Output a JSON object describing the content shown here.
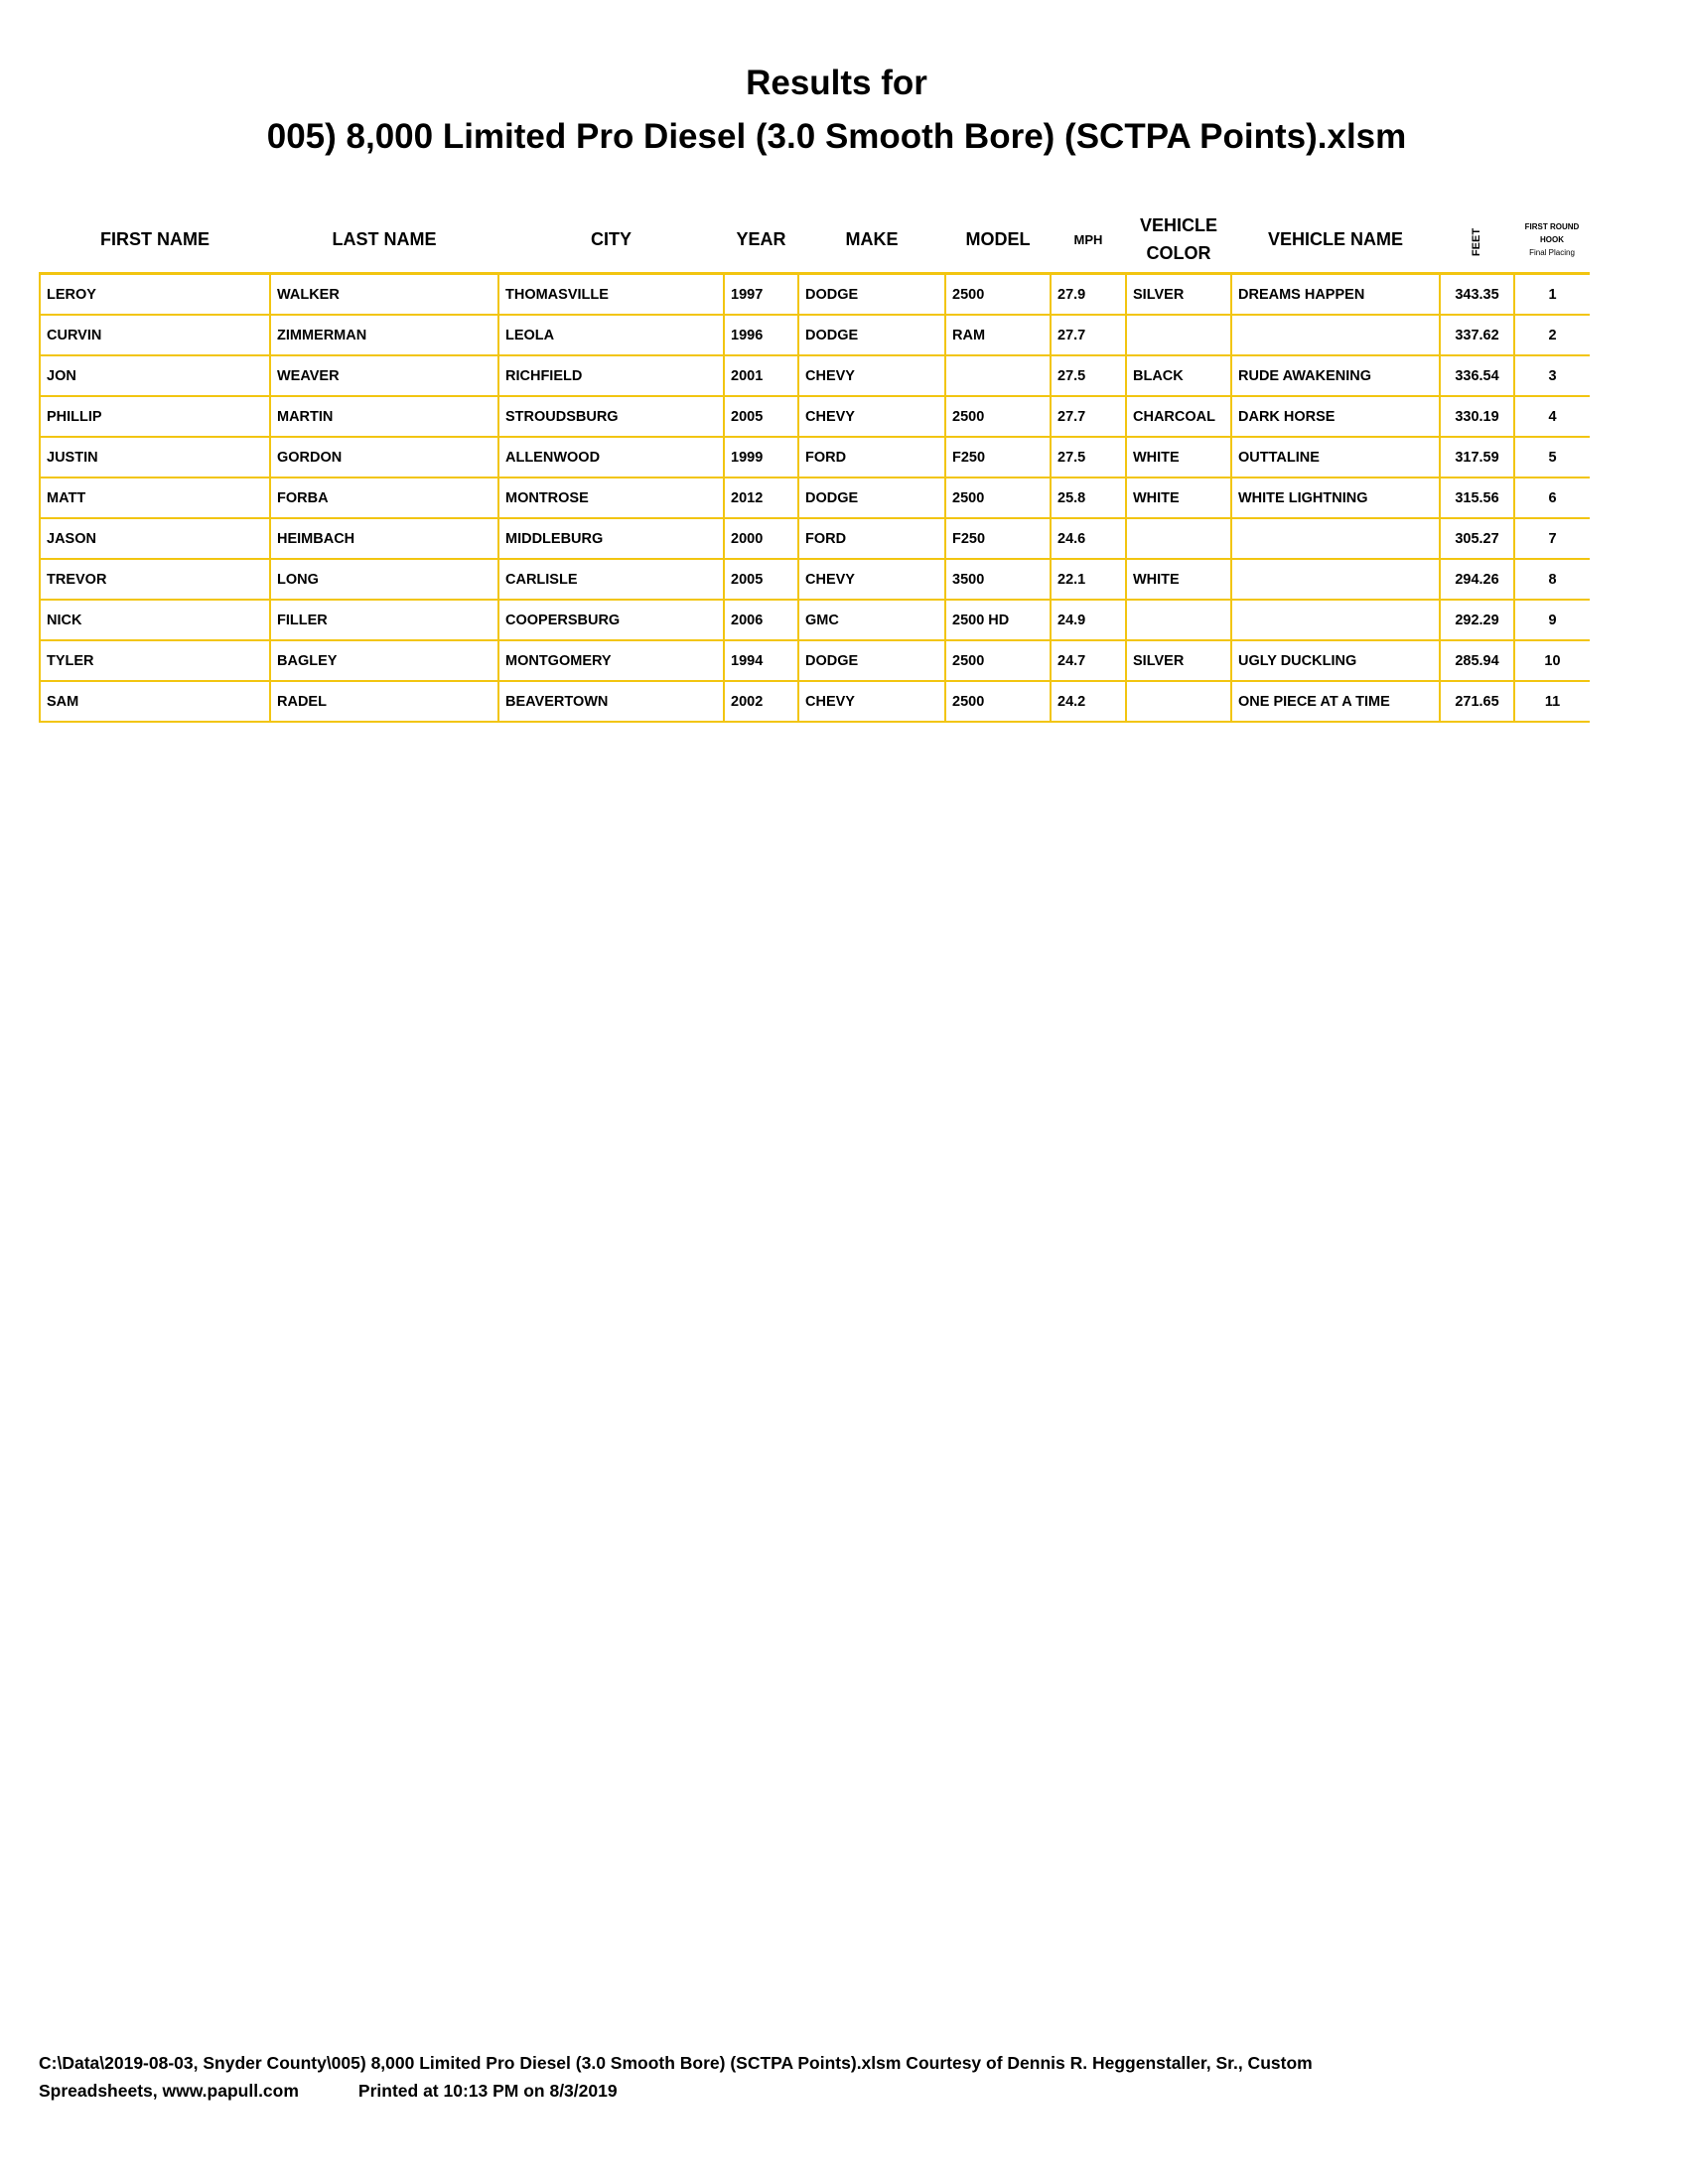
{
  "title_line1": "Results for",
  "title_line2": "005) 8,000 Limited Pro Diesel (3.0 Smooth Bore) (SCTPA Points).xlsm",
  "columns": {
    "first": "FIRST NAME",
    "last": "LAST NAME",
    "city": "CITY",
    "year": "YEAR",
    "make": "MAKE",
    "model": "MODEL",
    "mph": "MPH",
    "color_line1": "VEHICLE",
    "color_line2": "COLOR",
    "vname": "VEHICLE NAME",
    "feet": "FEET",
    "place_line1": "FIRST ROUND",
    "place_line2": "HOOK",
    "place_line3": "Final Placing"
  },
  "rows": [
    [
      "LEROY",
      "WALKER",
      "THOMASVILLE",
      "1997",
      "DODGE",
      "2500",
      "27.9",
      "SILVER",
      "DREAMS HAPPEN",
      "343.35",
      "1"
    ],
    [
      "CURVIN",
      "ZIMMERMAN",
      "LEOLA",
      "1996",
      "DODGE",
      "RAM",
      "27.7",
      "",
      "",
      "337.62",
      "2"
    ],
    [
      "JON",
      "WEAVER",
      "RICHFIELD",
      "2001",
      "CHEVY",
      "",
      "27.5",
      "BLACK",
      "RUDE AWAKENING",
      "336.54",
      "3"
    ],
    [
      "PHILLIP",
      "MARTIN",
      "STROUDSBURG",
      "2005",
      "CHEVY",
      "2500",
      "27.7",
      "CHARCOAL",
      "DARK HORSE",
      "330.19",
      "4"
    ],
    [
      "JUSTIN",
      "GORDON",
      "ALLENWOOD",
      "1999",
      "FORD",
      "F250",
      "27.5",
      "WHITE",
      "OUTTALINE",
      "317.59",
      "5"
    ],
    [
      "MATT",
      "FORBA",
      "MONTROSE",
      "2012",
      "DODGE",
      "2500",
      "25.8",
      "WHITE",
      "WHITE LIGHTNING",
      "315.56",
      "6"
    ],
    [
      "JASON",
      "HEIMBACH",
      "MIDDLEBURG",
      "2000",
      "FORD",
      "F250",
      "24.6",
      "",
      "",
      "305.27",
      "7"
    ],
    [
      "TREVOR",
      "LONG",
      "CARLISLE",
      "2005",
      "CHEVY",
      "3500",
      "22.1",
      "WHITE",
      "",
      "294.26",
      "8"
    ],
    [
      "NICK",
      "FILLER",
      "COOPERSBURG",
      "2006",
      "GMC",
      "2500 HD",
      "24.9",
      "",
      "",
      "292.29",
      "9"
    ],
    [
      "TYLER",
      "BAGLEY",
      "MONTGOMERY",
      "1994",
      "DODGE",
      "2500",
      "24.7",
      "SILVER",
      "UGLY DUCKLING",
      "285.94",
      "10"
    ],
    [
      "SAM",
      "RADEL",
      "BEAVERTOWN",
      "2002",
      "CHEVY",
      "2500",
      "24.2",
      "",
      "ONE PIECE AT A TIME",
      "271.65",
      "11"
    ]
  ],
  "footer_line1": "C:\\Data\\2019-08-03, Snyder County\\005) 8,000 Limited Pro Diesel (3.0 Smooth Bore) (SCTPA Points).xlsm  Courtesy of Dennis R. Heggenstaller, Sr., Custom",
  "footer_line2_a": "Spreadsheets, www.papull.com",
  "footer_line2_b": "Printed at 10:13 PM on 8/3/2019",
  "colors": {
    "grid": "#f2c511"
  }
}
